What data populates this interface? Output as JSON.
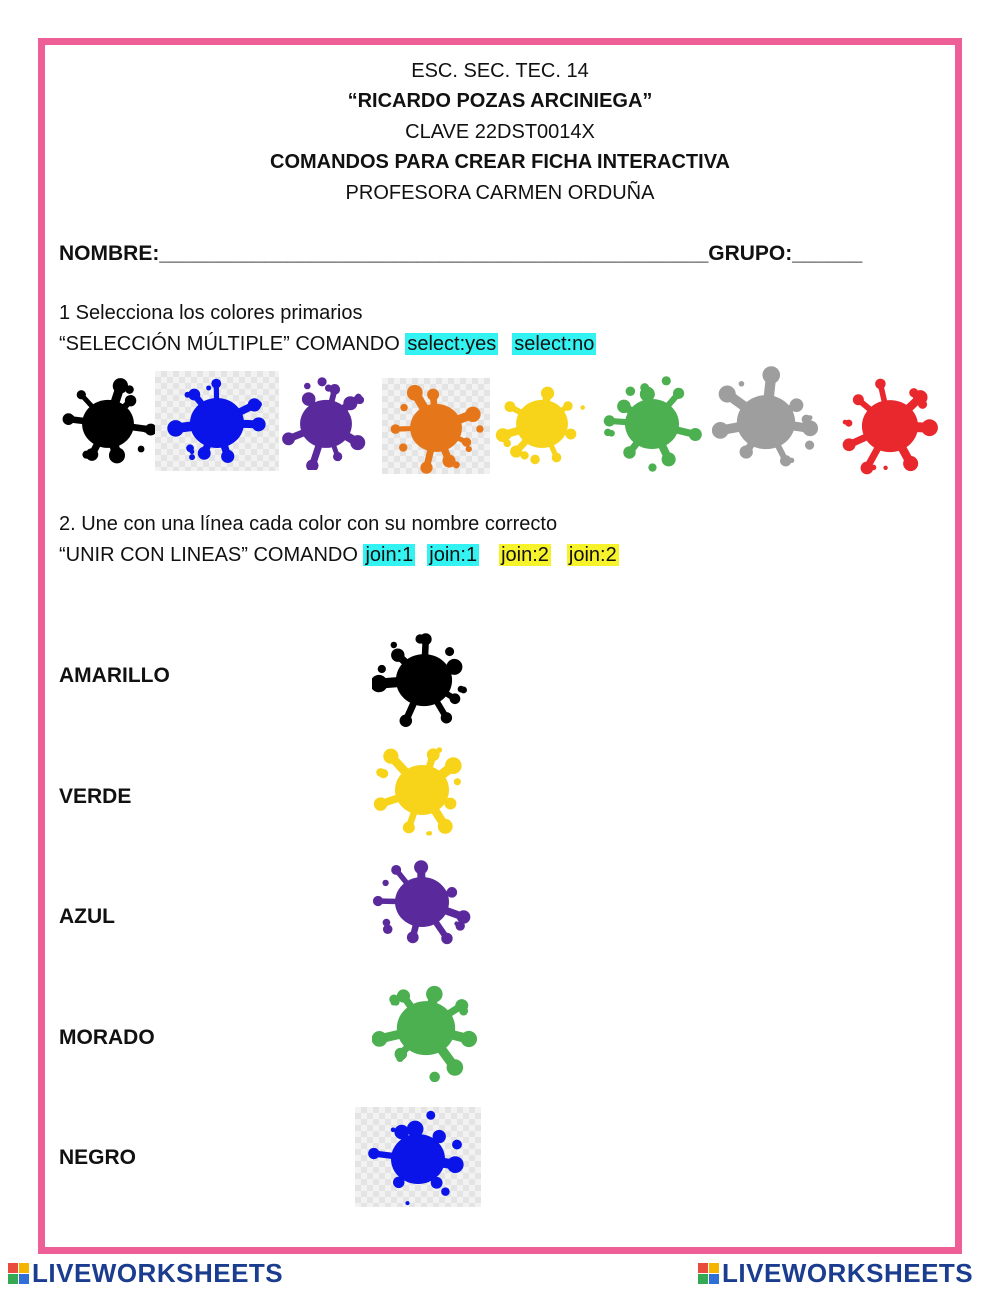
{
  "header": {
    "school": "ESC. SEC. TEC. 14",
    "school_name": "“RICARDO POZAS ARCINIEGA”",
    "clave": "CLAVE 22DST0014X",
    "subject": "COMANDOS PARA CREAR FICHA INTERACTIVA",
    "teacher": "PROFESORA CARMEN ORDUÑA"
  },
  "form": {
    "name_line": "NOMBRE:_______________________________________________GRUPO:______"
  },
  "q1": {
    "instruction": "1 Selecciona los colores primarios",
    "command_text": " “SELECCIÓN MÚLTIPLE” COMANDO ",
    "cmd_yes": "select:yes",
    "cmd_no": "select:no",
    "splashes": [
      {
        "color": "#000000"
      },
      {
        "color": "#0a14e8"
      },
      {
        "color": "#5a2a9c"
      },
      {
        "color": "#e6761a"
      },
      {
        "color": "#f7d31a"
      },
      {
        "color": "#4caf50"
      },
      {
        "color": "#9e9e9e"
      },
      {
        "color": "#e8282d"
      }
    ]
  },
  "q2": {
    "instruction": "2. Une con una línea cada color con su nombre correcto",
    "command_text": "“UNIR CON LINEAS” COMANDO ",
    "cmds": [
      "join:1",
      "join:1",
      "join:2",
      "join:2"
    ],
    "labels": [
      "AMARILLO",
      "VERDE",
      "AZUL",
      "MORADO",
      "NEGRO"
    ],
    "splash_colors": [
      "#000000",
      "#f7d31a",
      "#5a2a9c",
      "#4caf50",
      "#0a14e8"
    ]
  },
  "footer": {
    "brand": "LIVEWORKSHEETS",
    "brand_color": "#1b3d8f"
  }
}
